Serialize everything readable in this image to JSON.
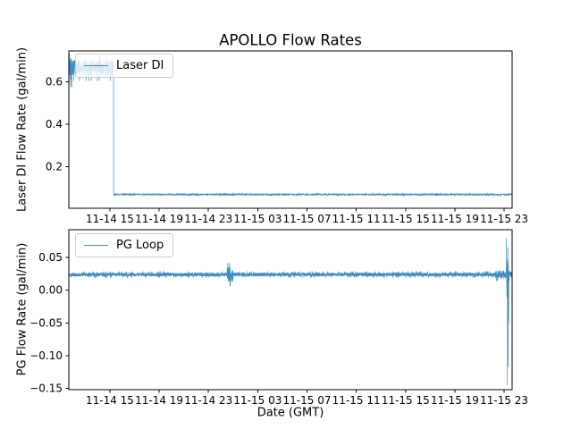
{
  "figure": {
    "title": "APOLLO Flow Rates",
    "background": "#ffffff",
    "text_color": "#000000",
    "accent_line_color": "#1f77b4"
  },
  "chart_data": [
    {
      "type": "line",
      "title": "APOLLO Flow Rates",
      "ylabel": "Laser DI Flow Rate (gal/min)",
      "xlabel": "",
      "legend_loc": "upper left",
      "grid": false,
      "ylim": [
        0.003,
        0.745
      ],
      "ytick_values": [
        0.2,
        0.4,
        0.6
      ],
      "ytick_labels": [
        "0.2",
        "0.4",
        "0.6"
      ],
      "x_span_hours": 35.98,
      "xtick_hours": [
        3.333,
        7.333,
        11.333,
        15.333,
        19.333,
        23.333,
        27.333,
        31.333,
        35.333
      ],
      "xtick_labels": [
        "11-14 15",
        "11-14 19",
        "11-14 23",
        "11-15 03",
        "11-15 07",
        "11-15 11",
        "11-15 15",
        "11-15 19",
        "11-15 23"
      ],
      "series": [
        {
          "name": "Laser DI",
          "color": "#1f77b4",
          "segments": [
            {
              "t0": 0.0,
              "t1": 0.3,
              "mean": 0.668,
              "amp": 0.058
            },
            {
              "t0": 0.3,
              "t1": 3.63,
              "mean": 0.665,
              "amp": 0.038
            },
            {
              "t0": 3.63,
              "t1": 35.98,
              "mean": 0.068,
              "amp": 0.004
            }
          ],
          "spikes": [
            {
              "t": 0.05,
              "v": 0.73
            },
            {
              "t": 0.12,
              "v": 0.615
            }
          ],
          "clamp": [
            0.008,
            0.742
          ]
        }
      ]
    },
    {
      "type": "line",
      "title": "",
      "ylabel": "PG Flow Rate (gal/min)",
      "xlabel": "Date (GMT)",
      "legend_loc": "upper left",
      "grid": false,
      "ylim": [
        -0.152,
        0.0924
      ],
      "ytick_values": [
        0.05,
        0.0,
        -0.05,
        -0.1,
        -0.15
      ],
      "ytick_labels": [
        "0.05",
        "0.00",
        "−0.05",
        "−0.10",
        "−0.15"
      ],
      "x_span_hours": 35.98,
      "xtick_hours": [
        3.333,
        7.333,
        11.333,
        15.333,
        19.333,
        23.333,
        27.333,
        31.333,
        35.333
      ],
      "xtick_labels": [
        "11-14 15",
        "11-14 19",
        "11-14 23",
        "11-15 03",
        "11-15 07",
        "11-15 11",
        "11-15 15",
        "11-15 19",
        "11-15 23"
      ],
      "series": [
        {
          "name": "PG Loop",
          "color": "#1f77b4",
          "segments": [
            {
              "t0": 0.0,
              "t1": 12.85,
              "mean": 0.024,
              "amp": 0.0028
            },
            {
              "t0": 12.85,
              "t1": 13.35,
              "mean": 0.024,
              "amp": 0.011
            },
            {
              "t0": 13.35,
              "t1": 34.6,
              "mean": 0.024,
              "amp": 0.0028
            },
            {
              "t0": 34.6,
              "t1": 35.45,
              "mean": 0.024,
              "amp": 0.006
            },
            {
              "t0": 35.45,
              "t1": 35.8,
              "mean": 0.024,
              "amp": 0.034,
              "env": "peak"
            },
            {
              "t0": 35.8,
              "t1": 35.98,
              "mean": 0.024,
              "amp": 0.004
            }
          ],
          "spikes": [
            {
              "t": 13.05,
              "v": 0.041
            },
            {
              "t": 13.1,
              "v": 0.007
            },
            {
              "t": 35.52,
              "v": 0.079
            },
            {
              "t": 35.6,
              "v": -0.145
            },
            {
              "t": 35.63,
              "v": 0.065
            },
            {
              "t": 35.66,
              "v": -0.117
            },
            {
              "t": 35.7,
              "v": -0.05
            }
          ],
          "clamp": [
            -0.149,
            0.085
          ]
        }
      ]
    }
  ]
}
